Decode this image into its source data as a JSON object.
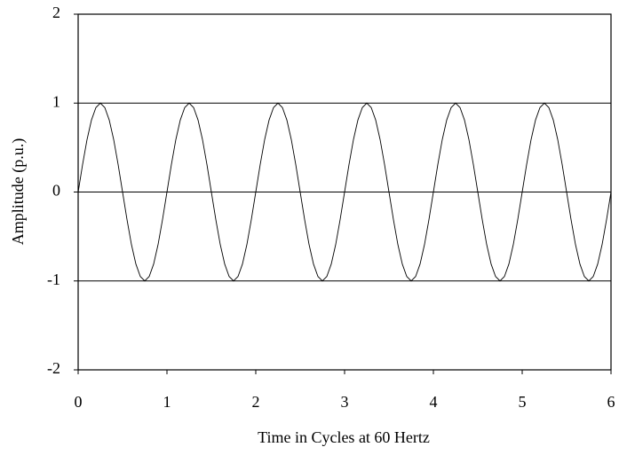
{
  "chart_data": {
    "type": "line",
    "xlabel": "Time in Cycles at 60 Hertz",
    "ylabel": "Amplitude (p.u.)",
    "color": "#000000",
    "grid": true,
    "xlim": [
      0,
      6
    ],
    "xticks": [
      0,
      1,
      2,
      3,
      4,
      5,
      6
    ],
    "ylim": [
      -2,
      2
    ],
    "yticks": [
      -2,
      -1,
      0,
      1,
      2
    ],
    "x": [
      0,
      0.05,
      0.1,
      0.15,
      0.2,
      0.25,
      0.3,
      0.35,
      0.4,
      0.45,
      0.5,
      0.55,
      0.6,
      0.65,
      0.7,
      0.75,
      0.8,
      0.85,
      0.9,
      0.95,
      1,
      1.05,
      1.1,
      1.15,
      1.2,
      1.25,
      1.3,
      1.35,
      1.4,
      1.45,
      1.5,
      1.55,
      1.6,
      1.65,
      1.7,
      1.75,
      1.8,
      1.85,
      1.9,
      1.95,
      2,
      2.05,
      2.1,
      2.15,
      2.2,
      2.25,
      2.3,
      2.35,
      2.4,
      2.45,
      2.5,
      2.55,
      2.6,
      2.65,
      2.7,
      2.75,
      2.8,
      2.85,
      2.9,
      2.95,
      3,
      3.05,
      3.1,
      3.15,
      3.2,
      3.25,
      3.3,
      3.35,
      3.4,
      3.45,
      3.5,
      3.55,
      3.6,
      3.65,
      3.7,
      3.75,
      3.8,
      3.85,
      3.9,
      3.95,
      4,
      4.05,
      4.1,
      4.15,
      4.2,
      4.25,
      4.3,
      4.35,
      4.4,
      4.45,
      4.5,
      4.55,
      4.6,
      4.65,
      4.7,
      4.75,
      4.8,
      4.85,
      4.9,
      4.95,
      5,
      5.05,
      5.1,
      5.15,
      5.2,
      5.25,
      5.3,
      5.35,
      5.4,
      5.45,
      5.5,
      5.55,
      5.6,
      5.65,
      5.7,
      5.75,
      5.8,
      5.85,
      5.9,
      5.95,
      6
    ],
    "values": [
      0,
      0.31,
      0.59,
      0.81,
      0.95,
      1,
      0.95,
      0.81,
      0.59,
      0.31,
      0,
      -0.31,
      -0.59,
      -0.81,
      -0.95,
      -1,
      -0.95,
      -0.81,
      -0.59,
      -0.31,
      0,
      0.31,
      0.59,
      0.81,
      0.95,
      1,
      0.95,
      0.81,
      0.59,
      0.31,
      0,
      -0.31,
      -0.59,
      -0.81,
      -0.95,
      -1,
      -0.95,
      -0.81,
      -0.59,
      -0.31,
      0,
      0.31,
      0.59,
      0.81,
      0.95,
      1,
      0.95,
      0.81,
      0.59,
      0.31,
      0,
      -0.31,
      -0.59,
      -0.81,
      -0.95,
      -1,
      -0.95,
      -0.81,
      -0.59,
      -0.31,
      0,
      0.31,
      0.59,
      0.81,
      0.95,
      1,
      0.95,
      0.81,
      0.59,
      0.31,
      0,
      -0.31,
      -0.59,
      -0.81,
      -0.95,
      -1,
      -0.95,
      -0.81,
      -0.59,
      -0.31,
      0,
      0.31,
      0.59,
      0.81,
      0.95,
      1,
      0.95,
      0.81,
      0.59,
      0.31,
      0,
      -0.31,
      -0.59,
      -0.81,
      -0.95,
      -1,
      -0.95,
      -0.81,
      -0.59,
      -0.31,
      0,
      0.31,
      0.59,
      0.81,
      0.95,
      1,
      0.95,
      0.81,
      0.59,
      0.31,
      0,
      -0.31,
      -0.59,
      -0.81,
      -0.95,
      -1,
      -0.95,
      -0.81,
      -0.59,
      -0.31,
      0
    ]
  }
}
